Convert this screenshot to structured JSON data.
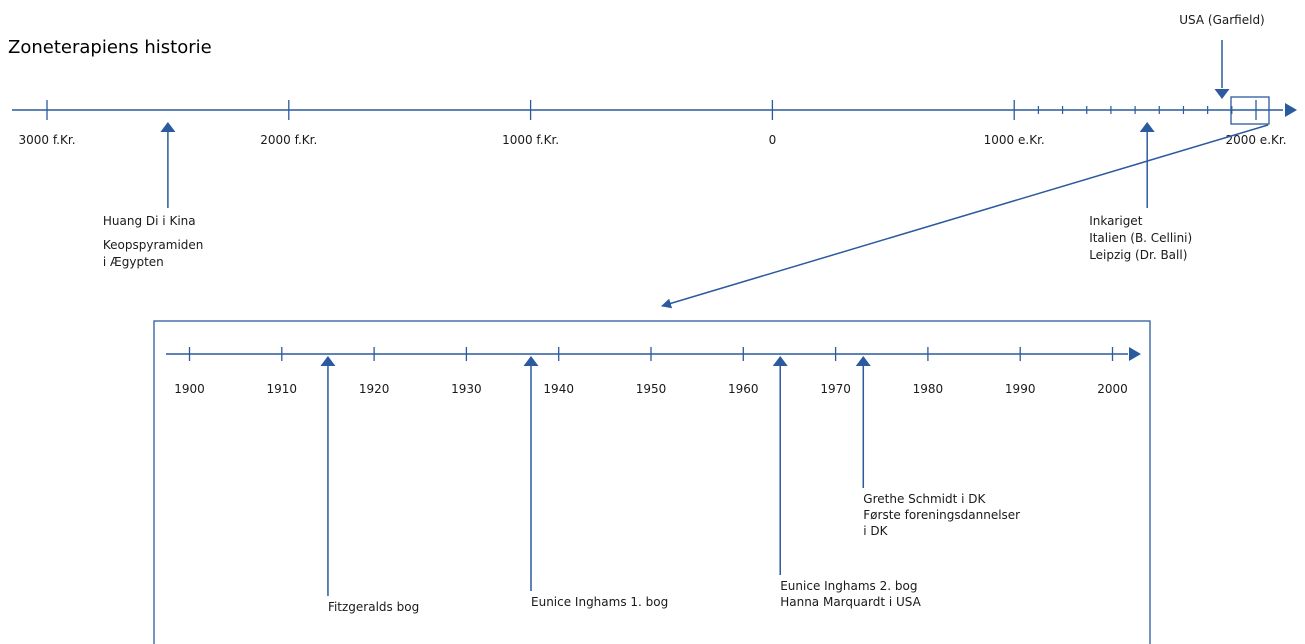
{
  "title": "Zoneterapiens historie",
  "main_timeline": {
    "ticks": [
      {
        "label": "3000 f.Kr.",
        "year": -3000
      },
      {
        "label": "2000 f.Kr.",
        "year": -2000
      },
      {
        "label": "1000 f.Kr.",
        "year": -1000
      },
      {
        "label": "0",
        "year": 0
      },
      {
        "label": "1000 e.Kr.",
        "year": 1000
      },
      {
        "label": "2000 e.Kr.",
        "year": 2000
      }
    ],
    "minor_ticks": [
      1100,
      1200,
      1300,
      1400,
      1500,
      1600,
      1700,
      1800,
      1900
    ],
    "events": [
      {
        "year": -2500,
        "direction": "up",
        "lines": [
          "Huang Di i Kina",
          "Keopspyramiden",
          "i Ægypten"
        ]
      },
      {
        "year": 1550,
        "direction": "up",
        "lines": [
          "Inkariget",
          "Italien (B. Cellini)",
          "Leipzig (Dr. Ball)"
        ]
      },
      {
        "year": 1850,
        "direction": "down",
        "lines": [
          "USA (Garfield)"
        ]
      }
    ],
    "zoom_range": [
      1900,
      2000
    ]
  },
  "detail_timeline": {
    "ticks": [
      {
        "label": "1900",
        "year": 1900
      },
      {
        "label": "1910",
        "year": 1910
      },
      {
        "label": "1920",
        "year": 1920
      },
      {
        "label": "1930",
        "year": 1930
      },
      {
        "label": "1940",
        "year": 1940
      },
      {
        "label": "1950",
        "year": 1950
      },
      {
        "label": "1960",
        "year": 1960
      },
      {
        "label": "1970",
        "year": 1970
      },
      {
        "label": "1980",
        "year": 1980
      },
      {
        "label": "1990",
        "year": 1990
      },
      {
        "label": "2000",
        "year": 2000
      }
    ],
    "events": [
      {
        "year": 1915,
        "lines": [
          "Fitzgeralds bog"
        ]
      },
      {
        "year": 1937,
        "lines": [
          "Eunice Inghams 1. bog"
        ]
      },
      {
        "year": 1964,
        "lines": [
          "Eunice Inghams 2. bog",
          "Hanna Marquardt i USA"
        ]
      },
      {
        "year": 1973,
        "lines": [
          "Grethe Schmidt i DK",
          "Første foreningsdannelser",
          "i DK"
        ]
      }
    ]
  },
  "colors": {
    "line": "#2b5a9e",
    "text": "#1a1a1a"
  }
}
